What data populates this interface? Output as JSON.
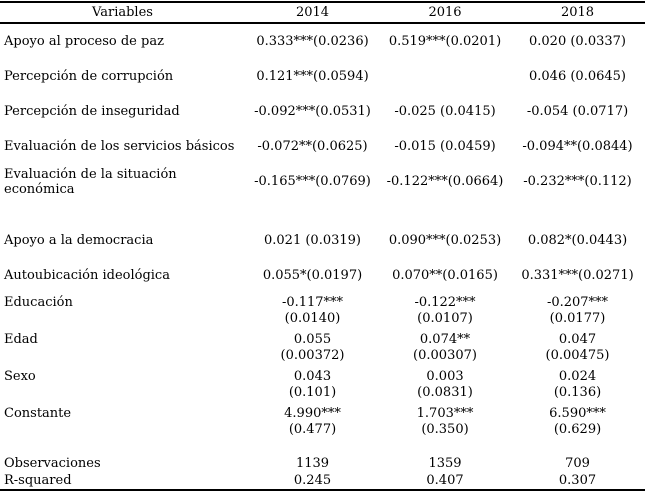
{
  "table": {
    "description": "Regression results table, OLS coefficients with standard errors, three survey years",
    "header": {
      "variables": "Variables",
      "years": [
        "2014",
        "2016",
        "2018"
      ]
    },
    "rows": [
      {
        "label": "Apoyo al proceso de paz",
        "y2014": "0.333***(0.0236)",
        "y2016": "0.519***(0.0201)",
        "y2018": "0.020 (0.0337)"
      },
      {
        "label": "Percepción de corrupción",
        "y2014": "0.121***(0.0594)",
        "y2016": "",
        "y2018": "0.046 (0.0645)"
      },
      {
        "label": "Percepción de inseguridad",
        "y2014": "-0.092***(0.0531)",
        "y2016": "-0.025 (0.0415)",
        "y2018": "-0.054 (0.0717)"
      },
      {
        "label": "Evaluación de los servicios básicos",
        "y2014": "-0.072**(0.0625)",
        "y2016": "-0.015 (0.0459)",
        "y2018": "-0.094**(0.0844)"
      },
      {
        "label": "Evaluación de la situación económica",
        "y2014": "-0.165***(0.0769)",
        "y2016": "-0.122***(0.0664)",
        "y2018": "-0.232***(0.112)"
      },
      {
        "label": "Apoyo a la democracia",
        "y2014": "0.021 (0.0319)",
        "y2016": "0.090***(0.0253)",
        "y2018": "0.082*(0.0443)"
      },
      {
        "label": "Autoubicación ideológica",
        "y2014": "0.055*(0.0197)",
        "y2016": "0.070**(0.0165)",
        "y2018": "0.331***(0.0271)"
      },
      {
        "label": "Educación",
        "y2014": "-0.117***\n(0.0140)",
        "y2016": "-0.122***\n(0.0107)",
        "y2018": "-0.207***\n(0.0177)"
      },
      {
        "label": "Edad",
        "y2014": "0.055\n(0.00372)",
        "y2016": "0.074**\n(0.00307)",
        "y2018": "0.047\n(0.00475)"
      },
      {
        "label": "Sexo",
        "y2014": "0.043\n(0.101)",
        "y2016": "0.003\n(0.0831)",
        "y2018": "0.024\n(0.136)"
      },
      {
        "label": "Constante",
        "y2014": "4.990***\n(0.477)",
        "y2016": "1.703***\n(0.350)",
        "y2018": "6.590***\n(0.629)"
      },
      {
        "label": "Observaciones",
        "y2014": "1139",
        "y2016": "1359",
        "y2018": "709"
      },
      {
        "label": "R-squared",
        "y2014": "0.245",
        "y2016": "0.407",
        "y2018": "0.307"
      }
    ]
  }
}
